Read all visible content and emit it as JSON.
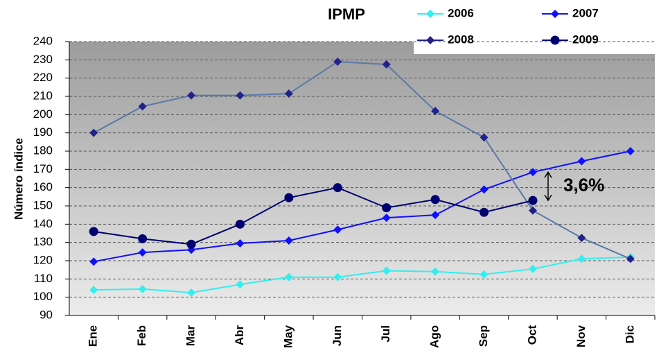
{
  "chart_data": {
    "type": "line",
    "title": "IPMP",
    "ylabel": "Número índice",
    "categories": [
      "Ene",
      "Feb",
      "Mar",
      "Abr",
      "May",
      "Jun",
      "Jul",
      "Ago",
      "Sep",
      "Oct",
      "Nov",
      "Dic"
    ],
    "series": [
      {
        "name": "2006",
        "color": "#33eeee",
        "values": [
          104,
          104.5,
          102.5,
          107,
          111,
          111,
          114.5,
          114,
          112.5,
          115.5,
          121,
          122
        ]
      },
      {
        "name": "2007",
        "color": "#1010ff",
        "values": [
          119.5,
          124.5,
          126,
          129.5,
          131,
          137,
          143.5,
          145,
          159,
          168.5,
          174.5,
          180
        ]
      },
      {
        "name": "2008",
        "color": "#22228a",
        "values": [
          190,
          204.5,
          210.5,
          210.5,
          211.5,
          229,
          227.5,
          202,
          187.5,
          147.5,
          132.5,
          121
        ]
      },
      {
        "name": "2009",
        "color": "#000070",
        "values": [
          136,
          132,
          129,
          140,
          154.5,
          160,
          149,
          153.5,
          146.5,
          153,
          null,
          null
        ]
      }
    ],
    "annotation": "3,6%",
    "ylim": [
      90,
      240
    ],
    "yticks": [
      90,
      100,
      110,
      120,
      130,
      140,
      150,
      160,
      170,
      180,
      190,
      200,
      210,
      220,
      230,
      240
    ],
    "grid": true
  }
}
